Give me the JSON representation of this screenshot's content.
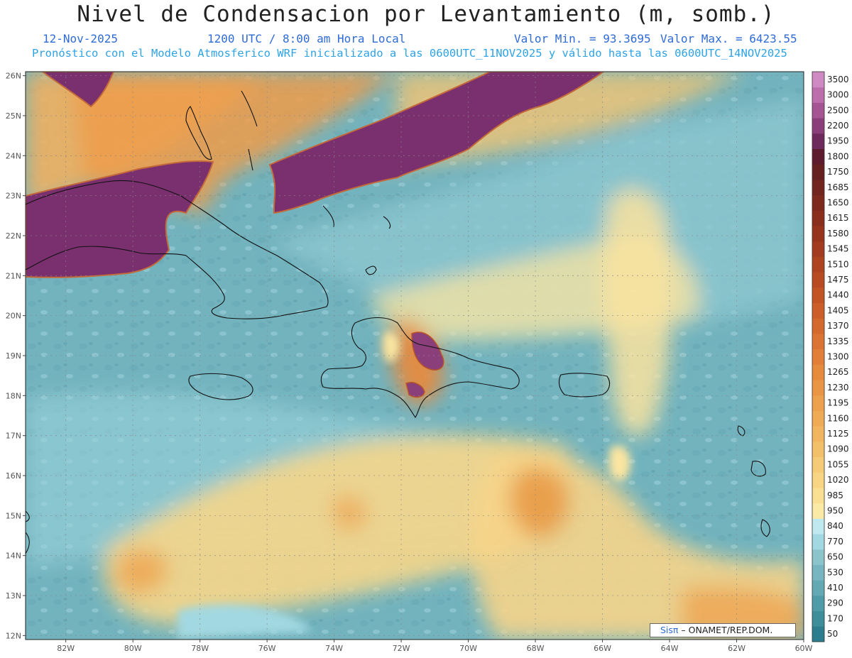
{
  "header": {
    "title": "Nivel de Condensacion por Levantamiento (m, somb.)",
    "date": "12-Nov-2025",
    "time": "1200 UTC / 8:00 am Hora Local",
    "min_label": "Valor Min. = 93.3695",
    "max_label": "Valor Max. = 6423.55",
    "model_line": "Pronóstico con el Modelo Atmosferico WRF inicializado a las 0600UTC_11NOV2025 y válido hasta las  0600UTC_14NOV2025"
  },
  "map": {
    "lon_range": [
      -83.2,
      -60
    ],
    "lat_range": [
      11.9,
      26.1
    ],
    "lon_ticks": [
      "82W",
      "80W",
      "78W",
      "76W",
      "74W",
      "72W",
      "70W",
      "68W",
      "66W",
      "64W",
      "62W",
      "60W"
    ],
    "lon_values": [
      -82,
      -80,
      -78,
      -76,
      -74,
      -72,
      -70,
      -68,
      -66,
      -64,
      -62,
      -60
    ],
    "lat_ticks": [
      "12N",
      "13N",
      "14N",
      "15N",
      "16N",
      "17N",
      "18N",
      "19N",
      "20N",
      "21N",
      "22N",
      "23N",
      "24N",
      "25N",
      "26N"
    ],
    "lat_values": [
      12,
      13,
      14,
      15,
      16,
      17,
      18,
      19,
      20,
      21,
      22,
      23,
      24,
      25,
      26
    ],
    "grid": true
  },
  "colorbar": {
    "levels": [
      "50",
      "170",
      "290",
      "410",
      "530",
      "650",
      "770",
      "840",
      "950",
      "985",
      "1020",
      "1055",
      "1090",
      "1125",
      "1160",
      "1195",
      "1230",
      "1265",
      "1300",
      "1335",
      "1370",
      "1405",
      "1440",
      "1475",
      "1510",
      "1545",
      "1580",
      "1615",
      "1650",
      "1685",
      "1750",
      "1800",
      "1950",
      "2200",
      "2500",
      "3000",
      "3500"
    ],
    "colors": [
      "#2c7d8e",
      "#3d8d9b",
      "#4f9ba8",
      "#63a9b4",
      "#77b6c0",
      "#8cc4cc",
      "#a2d8e1",
      "#bfe9ef",
      "#fbe9a6",
      "#f9df92",
      "#f7d583",
      "#f5cb76",
      "#f3c06a",
      "#f1b55f",
      "#efaa55",
      "#eda04d",
      "#ea9545",
      "#e68a3e",
      "#e17f38",
      "#db7432",
      "#d4692d",
      "#cc5f29",
      "#c35525",
      "#b94b22",
      "#ae4320",
      "#a23b1f",
      "#96341e",
      "#8a2e1e",
      "#7e291e",
      "#72241f",
      "#662020",
      "#5e1b2d",
      "#6e2a5c",
      "#8a3f7b",
      "#a45592",
      "#bb6eab",
      "#cf8ac3"
    ]
  },
  "credit": {
    "logo": "Sisπ",
    "text": " – ONAMET/REP.DOM."
  }
}
